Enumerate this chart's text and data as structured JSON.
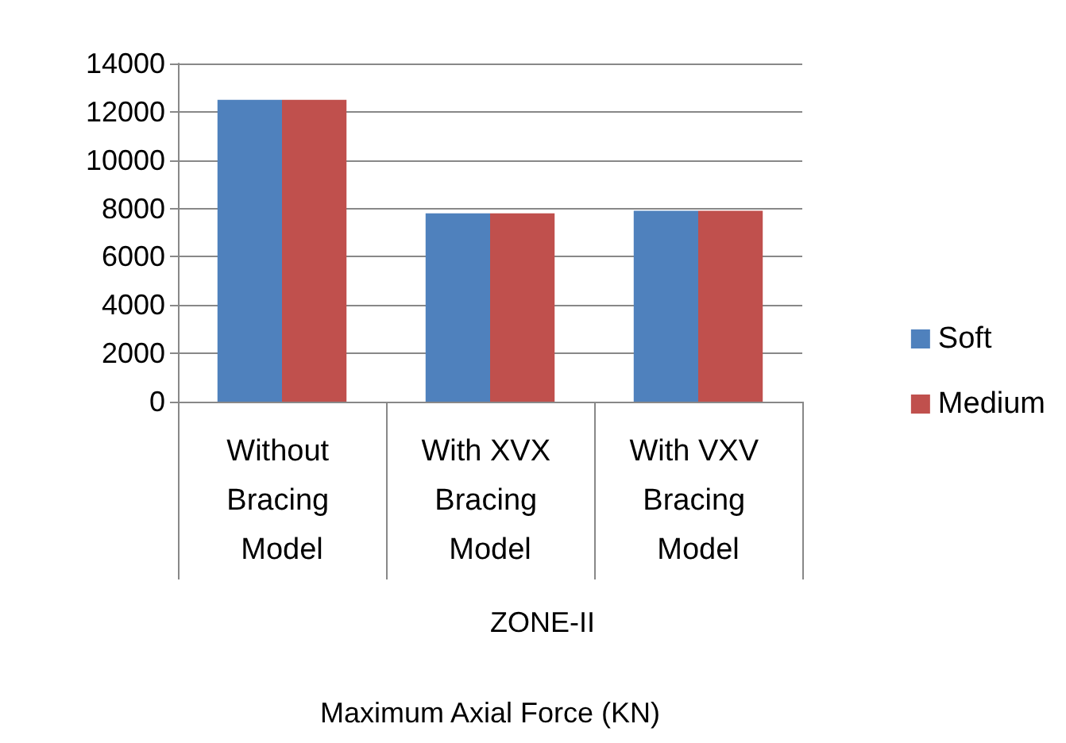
{
  "chart_data": {
    "type": "bar",
    "categories": [
      "Without Bracing Model",
      "With XVX Bracing Model",
      "With VXV Bracing Model"
    ],
    "series": [
      {
        "name": "Soft",
        "color": "#4f81bd",
        "values": [
          12500,
          7800,
          7900
        ]
      },
      {
        "name": "Medium",
        "color": "#c0504d",
        "values": [
          12500,
          7800,
          7900
        ]
      }
    ],
    "xlabel": "Maximum Axial Force (KN)",
    "annotations": [
      "ZONE-II"
    ],
    "ylim": [
      0,
      14000
    ],
    "yticks": [
      0,
      2000,
      4000,
      6000,
      8000,
      10000,
      12000,
      14000
    ],
    "grid": "y",
    "legend": "right"
  }
}
